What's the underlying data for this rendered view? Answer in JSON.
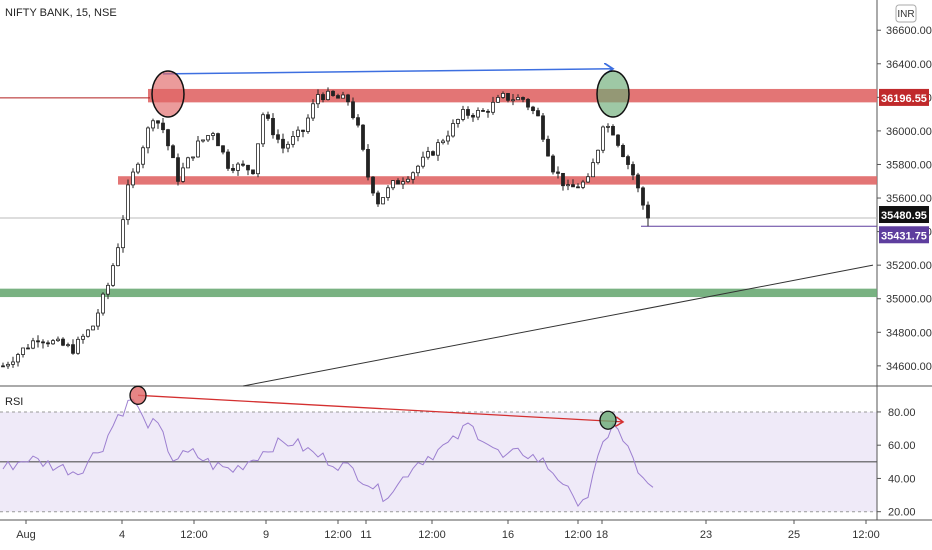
{
  "header": {
    "symbol_label": "NIFTY BANK, 15, NSE",
    "currency_badge": "INR"
  },
  "rsi_pane": {
    "label": "RSI"
  },
  "colors": {
    "up": "#ffffff",
    "down": "#222222",
    "resistance_zone": "#e06666",
    "support_zone": "#6aaa74",
    "rsi_line": "#9c7fd0",
    "rsi_band": "#efeaf8",
    "trend_blue": "#3d6fe0",
    "trend_red": "#d43030",
    "last_price_tag": "#111111",
    "low_tag": "#5e3e9e",
    "level_tag": "#c0292b"
  },
  "chart_data": [
    {
      "type": "candlestick",
      "title": "NIFTY BANK, 15, NSE",
      "ylim": [
        34480,
        36780
      ],
      "y_ticks": [
        "36600.00",
        "36400.00",
        "36200.00",
        "36000.00",
        "35800.00",
        "35600.00",
        "35400.00",
        "35200.00",
        "35000.00",
        "34800.00",
        "34600.00"
      ],
      "x_tick_labels": [
        "Aug",
        "4",
        "12:00",
        "9",
        "12:00",
        "11",
        "12:00",
        "16",
        "12:00",
        "18",
        "23",
        "25",
        "12:00"
      ],
      "price_tags": [
        {
          "label": "36196.55",
          "value": 36196.55,
          "role": "level"
        },
        {
          "label": "35480.95",
          "value": 35480.95,
          "role": "last"
        },
        {
          "label": "35431.75",
          "value": 35431.75,
          "role": "low"
        }
      ],
      "key_points": [
        {
          "x": 0,
          "y": 34600
        },
        {
          "x": 7,
          "y": 34770
        },
        {
          "x": 14,
          "y": 34700
        },
        {
          "x": 18,
          "y": 34840
        },
        {
          "x": 21,
          "y": 35080
        },
        {
          "x": 23,
          "y": 35320
        },
        {
          "x": 25,
          "y": 35650
        },
        {
          "x": 27,
          "y": 35830
        },
        {
          "x": 30,
          "y": 36090
        },
        {
          "x": 32,
          "y": 36010
        },
        {
          "x": 35,
          "y": 35720
        },
        {
          "x": 39,
          "y": 35920
        },
        {
          "x": 42,
          "y": 36000
        },
        {
          "x": 45,
          "y": 35800
        },
        {
          "x": 50,
          "y": 35770
        },
        {
          "x": 52,
          "y": 36100
        },
        {
          "x": 56,
          "y": 35900
        },
        {
          "x": 60,
          "y": 36000
        },
        {
          "x": 63,
          "y": 36220
        },
        {
          "x": 66,
          "y": 36200
        },
        {
          "x": 69,
          "y": 36180
        },
        {
          "x": 71,
          "y": 36010
        },
        {
          "x": 73,
          "y": 35730
        },
        {
          "x": 75,
          "y": 35580
        },
        {
          "x": 78,
          "y": 35680
        },
        {
          "x": 82,
          "y": 35760
        },
        {
          "x": 86,
          "y": 35880
        },
        {
          "x": 89,
          "y": 35990
        },
        {
          "x": 92,
          "y": 36100
        },
        {
          "x": 96,
          "y": 36110
        },
        {
          "x": 100,
          "y": 36200
        },
        {
          "x": 104,
          "y": 36190
        },
        {
          "x": 107,
          "y": 36080
        },
        {
          "x": 110,
          "y": 35780
        },
        {
          "x": 113,
          "y": 35650
        },
        {
          "x": 117,
          "y": 35700
        },
        {
          "x": 119,
          "y": 35900
        },
        {
          "x": 120,
          "y": 36050
        },
        {
          "x": 122,
          "y": 36000
        },
        {
          "x": 124,
          "y": 35870
        },
        {
          "x": 126,
          "y": 35740
        },
        {
          "x": 128,
          "y": 35560
        },
        {
          "x": 129,
          "y": 35481
        }
      ],
      "zones": [
        {
          "role": "resistance",
          "low": 36170,
          "high": 36250
        },
        {
          "role": "support-mid",
          "low": 35680,
          "high": 35730
        },
        {
          "role": "support",
          "low": 35010,
          "high": 35060
        }
      ],
      "horizontal_levels": [
        {
          "value": 36196.55,
          "role": "level"
        },
        {
          "value": 35431.75,
          "role": "low"
        },
        {
          "value": 35480.95,
          "role": "last"
        }
      ],
      "trend_lines": [
        {
          "role": "price-top",
          "from": {
            "x": 32,
            "y": 36340
          },
          "to": {
            "x": 122,
            "y": 36370
          }
        },
        {
          "role": "long-support",
          "from": {
            "x": 48,
            "y": 34480
          },
          "to": {
            "x": 174,
            "y": 35200
          }
        }
      ],
      "markers": [
        {
          "role": "high-1",
          "x": 33,
          "y": 36220,
          "fill": "#e06666"
        },
        {
          "role": "high-2",
          "x": 122,
          "y": 36220,
          "fill": "#6aaa74"
        }
      ]
    },
    {
      "type": "line",
      "title": "RSI",
      "ylim": [
        15,
        95
      ],
      "y_ticks": [
        "80.00",
        "60.00",
        "40.00",
        "20.00"
      ],
      "band": [
        20,
        80
      ],
      "mid_line": 50,
      "key_points": [
        {
          "x": 0,
          "y": 46
        },
        {
          "x": 5,
          "y": 52
        },
        {
          "x": 10,
          "y": 48
        },
        {
          "x": 15,
          "y": 44
        },
        {
          "x": 20,
          "y": 60
        },
        {
          "x": 23,
          "y": 78
        },
        {
          "x": 26,
          "y": 88
        },
        {
          "x": 28,
          "y": 75
        },
        {
          "x": 31,
          "y": 71
        },
        {
          "x": 34,
          "y": 52
        },
        {
          "x": 38,
          "y": 55
        },
        {
          "x": 42,
          "y": 48
        },
        {
          "x": 46,
          "y": 45
        },
        {
          "x": 50,
          "y": 52
        },
        {
          "x": 54,
          "y": 60
        },
        {
          "x": 58,
          "y": 62
        },
        {
          "x": 62,
          "y": 55
        },
        {
          "x": 66,
          "y": 50
        },
        {
          "x": 70,
          "y": 45
        },
        {
          "x": 73,
          "y": 38
        },
        {
          "x": 76,
          "y": 30
        },
        {
          "x": 79,
          "y": 36
        },
        {
          "x": 82,
          "y": 48
        },
        {
          "x": 86,
          "y": 55
        },
        {
          "x": 90,
          "y": 62
        },
        {
          "x": 93,
          "y": 72
        },
        {
          "x": 96,
          "y": 65
        },
        {
          "x": 100,
          "y": 52
        },
        {
          "x": 104,
          "y": 56
        },
        {
          "x": 108,
          "y": 50
        },
        {
          "x": 112,
          "y": 38
        },
        {
          "x": 114,
          "y": 26
        },
        {
          "x": 117,
          "y": 30
        },
        {
          "x": 120,
          "y": 60
        },
        {
          "x": 122,
          "y": 74
        },
        {
          "x": 124,
          "y": 62
        },
        {
          "x": 126,
          "y": 52
        },
        {
          "x": 128,
          "y": 38
        },
        {
          "x": 130,
          "y": 32
        }
      ],
      "trend_lines": [
        {
          "role": "rsi-top",
          "from": {
            "x": 27,
            "y": 90
          },
          "to": {
            "x": 124,
            "y": 74
          }
        }
      ],
      "markers": [
        {
          "role": "rsi-high-1",
          "x": 27,
          "y": 90,
          "fill": "#e06666"
        },
        {
          "role": "rsi-high-2",
          "x": 121,
          "y": 75,
          "fill": "#6aaa74"
        }
      ]
    }
  ]
}
